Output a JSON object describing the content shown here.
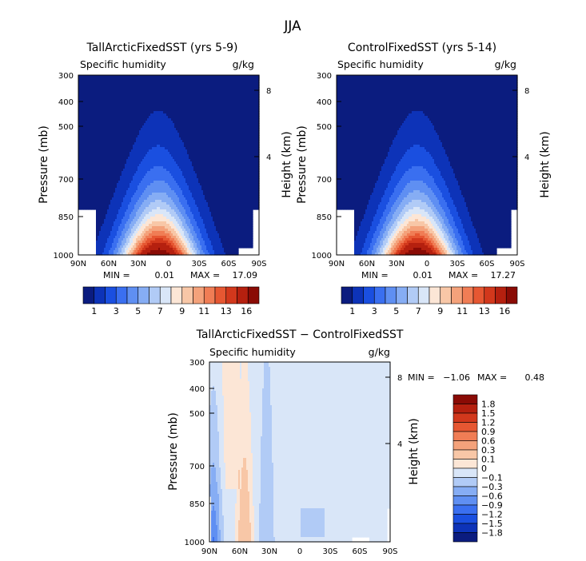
{
  "figure": {
    "title": "JJA"
  },
  "chart_data": [
    {
      "type": "heatmap",
      "title": "TallArcticFixedSST (yrs 5-9)",
      "subtitle_left": "Specific humidity",
      "subtitle_right": "g/kg",
      "xlabel": "",
      "ylabel": "Pressure (mb)",
      "ylabel_right": "Height (km)",
      "x_ticks": [
        "90N",
        "60N",
        "30N",
        "0",
        "30S",
        "60S",
        "90S"
      ],
      "y_ticks": [
        "300",
        "400",
        "500",
        "700",
        "850",
        "1000"
      ],
      "y_right_ticks": [
        "8",
        "4"
      ],
      "min_label": "MIN =",
      "min": "0.01",
      "max_label": "MAX =",
      "max": "17.09",
      "colorbar_labels": [
        "1",
        "3",
        "5",
        "7",
        "9",
        "11",
        "13",
        "16"
      ],
      "colorbar_colors": [
        "#0b1c7f",
        "#0d33b8",
        "#1a4fe0",
        "#3a6ff0",
        "#5f8ff2",
        "#86adf4",
        "#b1cbf6",
        "#d9e6f8",
        "#fce6d6",
        "#f8c7a7",
        "#f4a27b",
        "#f07d55",
        "#e65732",
        "#d2381c",
        "#b5200f",
        "#8a0b05"
      ],
      "peak_lat": 10,
      "peak_value": 17.09
    },
    {
      "type": "heatmap",
      "title": "ControlFixedSST (yrs 5-14)",
      "subtitle_left": "Specific humidity",
      "subtitle_right": "g/kg",
      "xlabel": "",
      "ylabel": "Pressure (mb)",
      "ylabel_right": "Height (km)",
      "x_ticks": [
        "90N",
        "60N",
        "30N",
        "0",
        "30S",
        "60S",
        "90S"
      ],
      "y_ticks": [
        "300",
        "400",
        "500",
        "700",
        "850",
        "1000"
      ],
      "y_right_ticks": [
        "8",
        "4"
      ],
      "min_label": "MIN =",
      "min": "0.01",
      "max_label": "MAX =",
      "max": "17.27",
      "colorbar_labels": [
        "1",
        "3",
        "5",
        "7",
        "9",
        "11",
        "13",
        "16"
      ],
      "colorbar_colors": [
        "#0b1c7f",
        "#0d33b8",
        "#1a4fe0",
        "#3a6ff0",
        "#5f8ff2",
        "#86adf4",
        "#b1cbf6",
        "#d9e6f8",
        "#fce6d6",
        "#f8c7a7",
        "#f4a27b",
        "#f07d55",
        "#e65732",
        "#d2381c",
        "#b5200f",
        "#8a0b05"
      ],
      "peak_lat": 10,
      "peak_value": 17.27
    },
    {
      "type": "heatmap",
      "title": "TallArcticFixedSST − ControlFixedSST",
      "subtitle_left": "Specific humidity",
      "subtitle_right": "g/kg",
      "xlabel": "",
      "ylabel": "Pressure (mb)",
      "ylabel_right": "Height (km)",
      "x_ticks": [
        "90N",
        "60N",
        "30N",
        "0",
        "30S",
        "60S",
        "90S"
      ],
      "y_ticks": [
        "300",
        "400",
        "500",
        "700",
        "850",
        "1000"
      ],
      "y_right_ticks": [
        "8",
        "4"
      ],
      "min_label": "MIN =",
      "min": "−1.06",
      "max_label": "MAX =",
      "max": "0.48",
      "colorbar_labels": [
        "1.8",
        "1.5",
        "1.2",
        "0.9",
        "0.6",
        "0.3",
        "0.1",
        "0",
        "−0.1",
        "−0.3",
        "−0.6",
        "−0.9",
        "−1.2",
        "−1.5",
        "−1.8"
      ],
      "colorbar_colors": [
        "#8a0b05",
        "#b5200f",
        "#d2381c",
        "#e65732",
        "#f07d55",
        "#f4a27b",
        "#f8c7a7",
        "#fce6d6",
        "#d9e6f8",
        "#b1cbf6",
        "#86adf4",
        "#5f8ff2",
        "#3a6ff0",
        "#1a4fe0",
        "#0d33b8",
        "#0b1c7f"
      ]
    }
  ]
}
